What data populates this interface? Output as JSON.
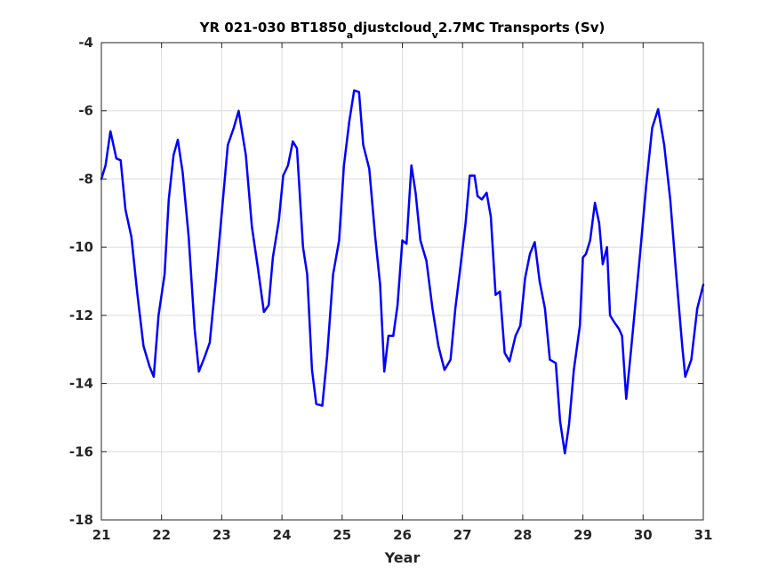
{
  "chart_data": {
    "type": "line",
    "title": {
      "part1": "YR 021-030 BT1850",
      "sub1": "a",
      "part2": "djustcloud",
      "sub2": "v",
      "part3": "2.7MC Transports (Sv)"
    },
    "xlabel": "Year",
    "ylabel": "",
    "xlim": [
      21,
      31
    ],
    "ylim": [
      -18,
      -4
    ],
    "xticks": [
      21,
      22,
      23,
      24,
      25,
      26,
      27,
      28,
      29,
      30,
      31
    ],
    "yticks": [
      -18,
      -16,
      -14,
      -12,
      -10,
      -8,
      -6,
      -4
    ],
    "grid": true,
    "series": [
      {
        "color": "#0000ff",
        "x": [
          21.0,
          21.07,
          21.15,
          21.25,
          21.32,
          21.4,
          21.5,
          21.6,
          21.7,
          21.8,
          21.87,
          21.95,
          22.05,
          22.12,
          22.2,
          22.27,
          22.35,
          22.45,
          22.55,
          22.62,
          22.72,
          22.8,
          22.9,
          23.0,
          23.1,
          23.2,
          23.28,
          23.4,
          23.5,
          23.6,
          23.7,
          23.78,
          23.85,
          23.95,
          24.02,
          24.1,
          24.18,
          24.25,
          24.35,
          24.42,
          24.5,
          24.57,
          24.67,
          24.75,
          24.85,
          24.95,
          25.03,
          25.12,
          25.2,
          25.28,
          25.35,
          25.45,
          25.55,
          25.63,
          25.7,
          25.77,
          25.85,
          25.92,
          26.0,
          26.07,
          26.15,
          26.22,
          26.3,
          26.4,
          26.5,
          26.6,
          26.7,
          26.8,
          26.88,
          26.95,
          27.05,
          27.12,
          27.2,
          27.25,
          27.32,
          27.4,
          27.47,
          27.55,
          27.62,
          27.7,
          27.78,
          27.88,
          27.96,
          28.04,
          28.12,
          28.2,
          28.28,
          28.37,
          28.45,
          28.55,
          28.62,
          28.7,
          28.77,
          28.85,
          28.95,
          29.0,
          29.05,
          29.12,
          29.2,
          29.27,
          29.33,
          29.4,
          29.45,
          29.52,
          29.6,
          29.65,
          29.72,
          29.8,
          29.87,
          29.95,
          30.05,
          30.15,
          30.25,
          30.35,
          30.45,
          30.55,
          30.65,
          30.7,
          30.8,
          30.9,
          31.0
        ],
        "y": [
          -8.0,
          -7.6,
          -6.6,
          -7.4,
          -7.45,
          -8.9,
          -9.7,
          -11.4,
          -12.9,
          -13.5,
          -13.8,
          -12.0,
          -10.8,
          -8.6,
          -7.3,
          -6.85,
          -7.8,
          -9.7,
          -12.4,
          -13.65,
          -13.2,
          -12.8,
          -11.0,
          -9.0,
          -7.0,
          -6.5,
          -6.0,
          -7.3,
          -9.4,
          -10.6,
          -11.9,
          -11.7,
          -10.3,
          -9.2,
          -7.9,
          -7.6,
          -6.9,
          -7.1,
          -10.0,
          -10.8,
          -13.6,
          -14.6,
          -14.65,
          -13.2,
          -10.8,
          -9.8,
          -7.6,
          -6.3,
          -5.4,
          -5.45,
          -7.0,
          -7.7,
          -9.7,
          -11.1,
          -13.65,
          -12.6,
          -12.6,
          -11.7,
          -9.8,
          -9.9,
          -7.6,
          -8.4,
          -9.8,
          -10.4,
          -11.8,
          -12.9,
          -13.6,
          -13.3,
          -11.8,
          -10.8,
          -9.3,
          -7.9,
          -7.9,
          -8.5,
          -8.6,
          -8.4,
          -9.1,
          -11.4,
          -11.3,
          -13.1,
          -13.35,
          -12.6,
          -12.3,
          -10.9,
          -10.2,
          -9.85,
          -11.0,
          -11.8,
          -13.3,
          -13.4,
          -15.1,
          -16.05,
          -15.2,
          -13.6,
          -12.3,
          -10.3,
          -10.2,
          -9.8,
          -8.7,
          -9.3,
          -10.5,
          -10.0,
          -12.0,
          -12.2,
          -12.4,
          -12.6,
          -14.45,
          -13.0,
          -11.7,
          -10.2,
          -8.2,
          -6.5,
          -5.95,
          -7.0,
          -8.6,
          -10.8,
          -12.9,
          -13.8,
          -13.3,
          -11.8,
          -11.1
        ]
      }
    ]
  }
}
